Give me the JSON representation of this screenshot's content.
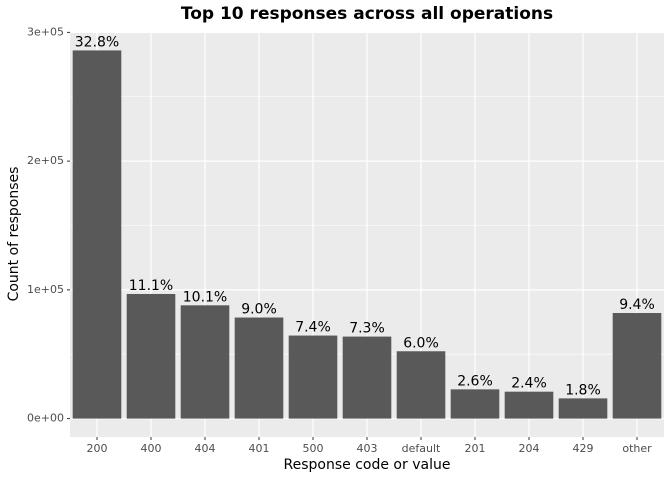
{
  "chart_data": {
    "type": "bar",
    "title": "Top 10 responses across all operations",
    "x_label": "Response code or value",
    "y_label": "Count of responses",
    "categories": [
      "200",
      "400",
      "404",
      "401",
      "500",
      "403",
      "default",
      "201",
      "204",
      "429",
      "other"
    ],
    "values": [
      286000,
      96800,
      88000,
      78500,
      64500,
      63700,
      52300,
      22700,
      20900,
      15700,
      82000
    ],
    "bar_labels": [
      "32.8%",
      "11.1%",
      "10.1%",
      "9.0%",
      "7.4%",
      "7.3%",
      "6.0%",
      "2.6%",
      "2.4%",
      "1.8%",
      "9.4%"
    ],
    "color": "#595959",
    "ylim": [
      -14300,
      300300
    ],
    "yticks": [
      {
        "value": 0,
        "label": "0e+00"
      },
      {
        "value": 100000,
        "label": "1e+05"
      },
      {
        "value": 200000,
        "label": "2e+05"
      },
      {
        "value": 300000,
        "label": "3e+05"
      }
    ],
    "grid": true
  }
}
